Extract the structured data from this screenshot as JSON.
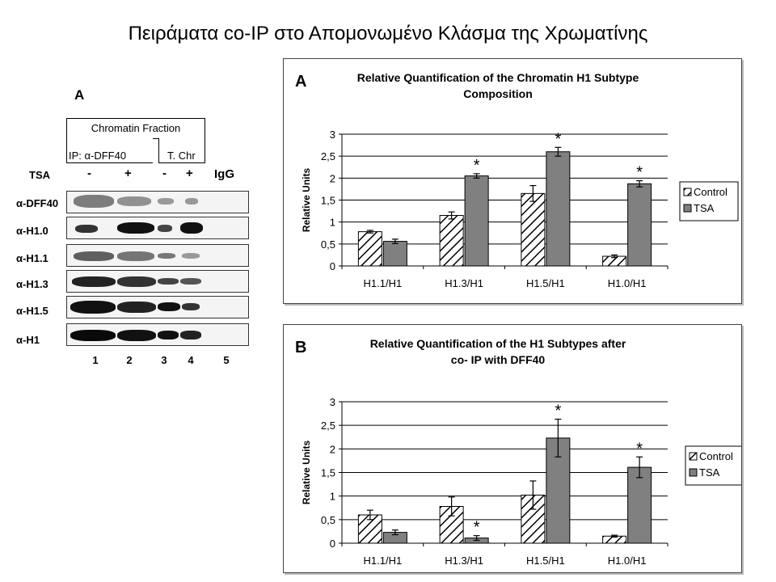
{
  "page_title": "Πειράματα co-IP στο Απομονωμένο Κλάσμα της Χρωματίνης",
  "blot": {
    "panel_letter": "A",
    "header": "Chromatin Fraction",
    "ip_label": "IP: α-DFF40",
    "tchr_label": "T. Chr",
    "tsa_label": "TSA",
    "tsa_signs": [
      "-",
      "+",
      "-",
      "+"
    ],
    "igg_label": "IgG",
    "rows": [
      "α-DFF40",
      "α-H1.0",
      "α-H1.1",
      "α-H1.3",
      "α-H1.5",
      "α-H1"
    ],
    "lanes": [
      "1",
      "2",
      "3",
      "4",
      "5"
    ]
  },
  "chart_data": [
    {
      "type": "bar",
      "panel_letter": "A",
      "title": "Relative Quantification of the Chromatin H1 Subtype Composition",
      "title_lines": [
        "Relative Quantification of the Chromatin H1 Subtype",
        "Composition"
      ],
      "categories": [
        "H1.1/H1",
        "H1.3/H1",
        "H1.5/H1",
        "H1.0/H1"
      ],
      "ylabel": "Relative Units",
      "xlabel": "",
      "ylim": [
        0,
        3
      ],
      "yticks": [
        "0",
        "0,5",
        "1",
        "1,5",
        "2",
        "2,5",
        "3"
      ],
      "grid": true,
      "legend_position": "right",
      "series": [
        {
          "name": "Control",
          "values": [
            0.78,
            1.15,
            1.65,
            0.22
          ],
          "errors": [
            0.03,
            0.08,
            0.18,
            0.03
          ],
          "pattern": "hatched"
        },
        {
          "name": "TSA",
          "values": [
            0.56,
            2.05,
            2.6,
            1.87
          ],
          "errors": [
            0.05,
            0.05,
            0.1,
            0.07
          ],
          "color": "#808080"
        }
      ],
      "significance": [
        "",
        "*",
        "*",
        "*"
      ]
    },
    {
      "type": "bar",
      "panel_letter": "B",
      "title": "Relative Quantification of the H1 Subtypes after co- IP with DFF40",
      "title_lines": [
        "Relative Quantification of the H1 Subtypes after",
        "co- IP with DFF40"
      ],
      "categories": [
        "H1.1/H1",
        "H1.3/H1",
        "H1.5/H1",
        "H1.0/H1"
      ],
      "ylabel": "Relative Units",
      "xlabel": "",
      "ylim": [
        0,
        3
      ],
      "yticks": [
        "0",
        "0,5",
        "1",
        "1,5",
        "2",
        "2,5",
        "3"
      ],
      "grid": true,
      "legend_position": "right",
      "series": [
        {
          "name": "Control",
          "values": [
            0.6,
            0.78,
            1.02,
            0.15
          ],
          "errors": [
            0.1,
            0.2,
            0.3,
            0.02
          ],
          "pattern": "hatched"
        },
        {
          "name": "TSA",
          "values": [
            0.23,
            0.11,
            2.23,
            1.61
          ],
          "errors": [
            0.05,
            0.05,
            0.4,
            0.22
          ],
          "color": "#808080"
        }
      ],
      "significance": [
        "",
        "*",
        "*",
        "*"
      ]
    }
  ]
}
